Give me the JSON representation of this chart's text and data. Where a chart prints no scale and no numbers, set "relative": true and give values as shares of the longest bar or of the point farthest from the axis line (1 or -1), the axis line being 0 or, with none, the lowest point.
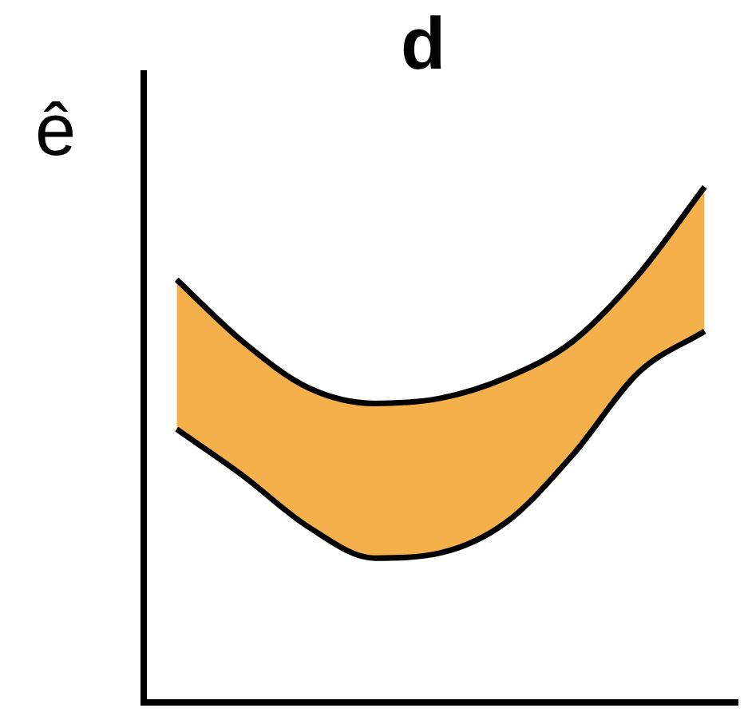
{
  "chart_data": {
    "type": "area",
    "title": "d",
    "ylabel": "ê",
    "relative": true,
    "categories": [
      null,
      null,
      null,
      null,
      null,
      null,
      null,
      null,
      null
    ],
    "series": [
      {
        "type": "line",
        "color": "#000000",
        "values": [
          0.53,
          0.44,
          0.34,
          0.28,
          0.29,
          0.35,
          0.48,
          0.64,
          0.72
        ]
      },
      {
        "color": "#f4b04a",
        "values": [
          0.82,
          0.7,
          0.61,
          0.58,
          0.59,
          0.63,
          0.7,
          0.83,
          1
        ]
      }
    ]
  }
}
